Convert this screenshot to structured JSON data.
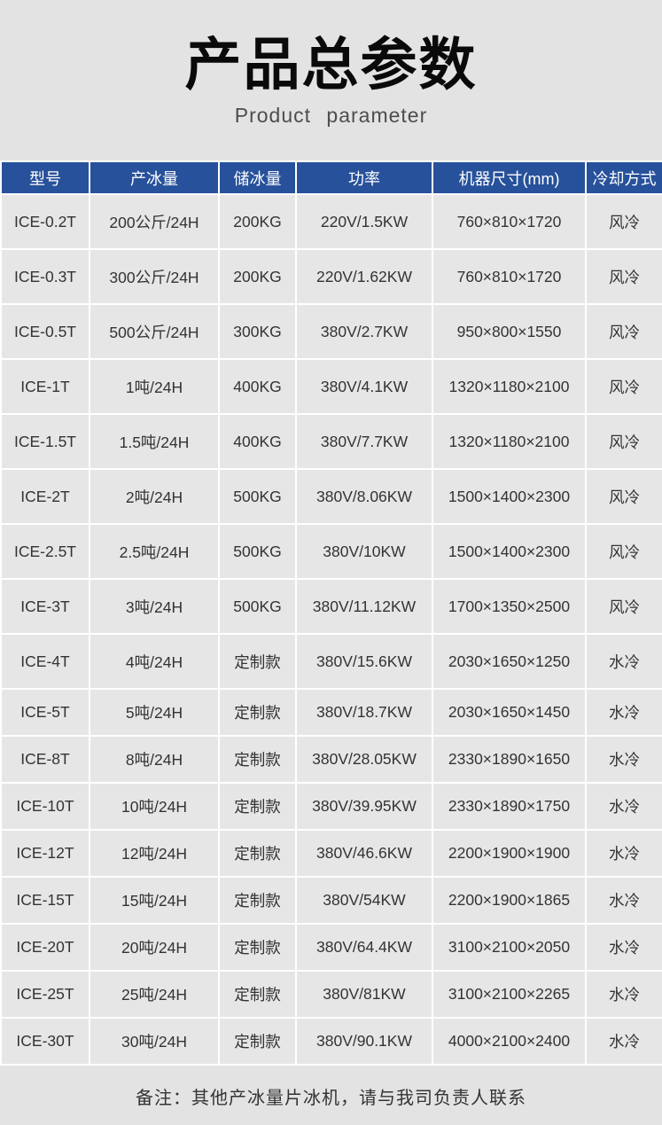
{
  "page": {
    "title": "产品总参数",
    "subtitle": "Product parameter",
    "note": "备注：其他产冰量片冰机，请与我司负责人联系"
  },
  "colors": {
    "header_bg": "#27519a",
    "header_text": "#ffffff",
    "page_bg": "#e3e3e3",
    "cell_bg": "#e6e6e6",
    "body_text": "#333333",
    "grid_line": "#ffffff"
  },
  "table": {
    "columns": [
      {
        "key": "model",
        "label": "型号"
      },
      {
        "key": "ice_output",
        "label": "产冰量"
      },
      {
        "key": "ice_storage",
        "label": "储冰量"
      },
      {
        "key": "power",
        "label": "功率"
      },
      {
        "key": "dimensions",
        "label": "机器尺寸(mm)"
      },
      {
        "key": "cooling",
        "label": "冷却方式"
      }
    ],
    "rows": [
      {
        "model": "ICE-0.2T",
        "ice_output": "200公斤/24H",
        "ice_storage": "200KG",
        "power": "220V/1.5KW",
        "dimensions": "760×810×1720",
        "cooling": "风冷"
      },
      {
        "model": "ICE-0.3T",
        "ice_output": "300公斤/24H",
        "ice_storage": "200KG",
        "power": "220V/1.62KW",
        "dimensions": "760×810×1720",
        "cooling": "风冷"
      },
      {
        "model": "ICE-0.5T",
        "ice_output": "500公斤/24H",
        "ice_storage": "300KG",
        "power": "380V/2.7KW",
        "dimensions": "950×800×1550",
        "cooling": "风冷"
      },
      {
        "model": "ICE-1T",
        "ice_output": "1吨/24H",
        "ice_storage": "400KG",
        "power": "380V/4.1KW",
        "dimensions": "1320×1180×2100",
        "cooling": "风冷"
      },
      {
        "model": "ICE-1.5T",
        "ice_output": "1.5吨/24H",
        "ice_storage": "400KG",
        "power": "380V/7.7KW",
        "dimensions": "1320×1180×2100",
        "cooling": "风冷"
      },
      {
        "model": "ICE-2T",
        "ice_output": "2吨/24H",
        "ice_storage": "500KG",
        "power": "380V/8.06KW",
        "dimensions": "1500×1400×2300",
        "cooling": "风冷"
      },
      {
        "model": "ICE-2.5T",
        "ice_output": "2.5吨/24H",
        "ice_storage": "500KG",
        "power": "380V/10KW",
        "dimensions": "1500×1400×2300",
        "cooling": "风冷"
      },
      {
        "model": "ICE-3T",
        "ice_output": "3吨/24H",
        "ice_storage": "500KG",
        "power": "380V/11.12KW",
        "dimensions": "1700×1350×2500",
        "cooling": "风冷"
      },
      {
        "model": "ICE-4T",
        "ice_output": "4吨/24H",
        "ice_storage": "定制款",
        "power": "380V/15.6KW",
        "dimensions": "2030×1650×1250",
        "cooling": "水冷"
      },
      {
        "model": "ICE-5T",
        "ice_output": "5吨/24H",
        "ice_storage": "定制款",
        "power": "380V/18.7KW",
        "dimensions": "2030×1650×1450",
        "cooling": "水冷"
      },
      {
        "model": "ICE-8T",
        "ice_output": "8吨/24H",
        "ice_storage": "定制款",
        "power": "380V/28.05KW",
        "dimensions": "2330×1890×1650",
        "cooling": "水冷"
      },
      {
        "model": "ICE-10T",
        "ice_output": "10吨/24H",
        "ice_storage": "定制款",
        "power": "380V/39.95KW",
        "dimensions": "2330×1890×1750",
        "cooling": "水冷"
      },
      {
        "model": "ICE-12T",
        "ice_output": "12吨/24H",
        "ice_storage": "定制款",
        "power": "380V/46.6KW",
        "dimensions": "2200×1900×1900",
        "cooling": "水冷"
      },
      {
        "model": "ICE-15T",
        "ice_output": "15吨/24H",
        "ice_storage": "定制款",
        "power": "380V/54KW",
        "dimensions": "2200×1900×1865",
        "cooling": "水冷"
      },
      {
        "model": "ICE-20T",
        "ice_output": "20吨/24H",
        "ice_storage": "定制款",
        "power": "380V/64.4KW",
        "dimensions": "3100×2100×2050",
        "cooling": "水冷"
      },
      {
        "model": "ICE-25T",
        "ice_output": "25吨/24H",
        "ice_storage": "定制款",
        "power": "380V/81KW",
        "dimensions": "3100×2100×2265",
        "cooling": "水冷"
      },
      {
        "model": "ICE-30T",
        "ice_output": "30吨/24H",
        "ice_storage": "定制款",
        "power": "380V/90.1KW",
        "dimensions": "4000×2100×2400",
        "cooling": "水冷"
      }
    ]
  }
}
